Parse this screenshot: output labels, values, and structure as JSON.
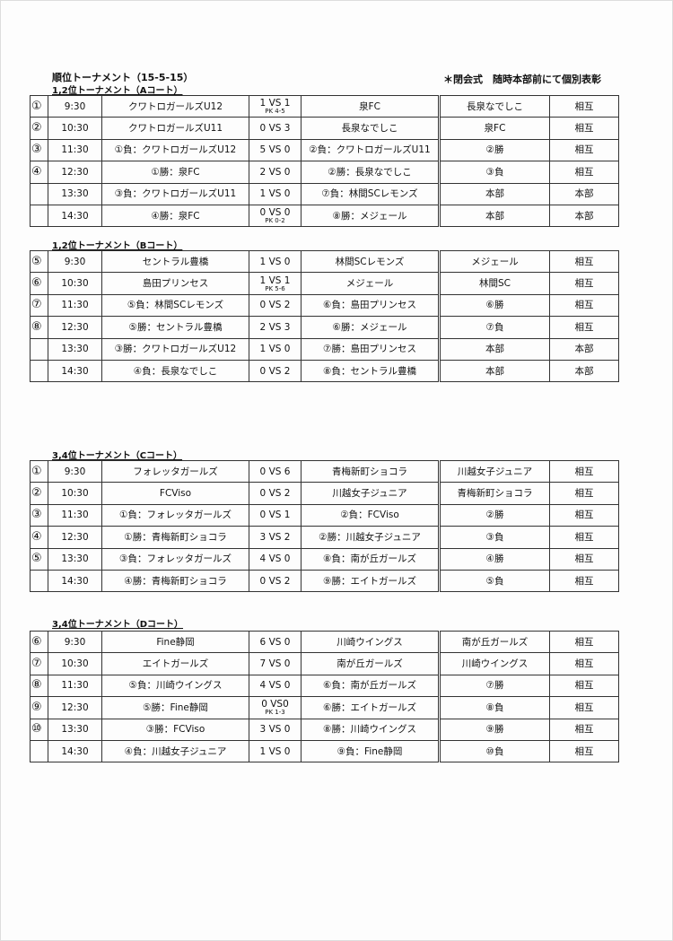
{
  "header": {
    "title": "順位トーナメント（15-5-15）",
    "note": "＊閉会式　随時本部前にて個別表彰"
  },
  "sections": [
    {
      "label": "1,2位トーナメント（Aコート）",
      "rows": [
        {
          "no": "①",
          "time": "9:30",
          "team1": "クワトロガールズU12",
          "score": "1 VS 1",
          "pk": "PK 4-5",
          "team2": "泉FC",
          "referee": "長泉なでしこ",
          "aux": "相互"
        },
        {
          "no": "②",
          "time": "10:30",
          "team1": "クワトロガールズU11",
          "score": "0 VS 3",
          "pk": "",
          "team2": "長泉なでしこ",
          "referee": "泉FC",
          "aux": "相互"
        },
        {
          "no": "③",
          "time": "11:30",
          "team1": "①負：クワトロガールズU12",
          "score": "5 VS 0",
          "pk": "",
          "team2": "②負：クワトロガールズU11",
          "referee": "②勝",
          "aux": "相互"
        },
        {
          "no": "④",
          "time": "12:30",
          "team1": "①勝：泉FC",
          "score": "2 VS 0",
          "pk": "",
          "team2": "②勝：長泉なでしこ",
          "referee": "③負",
          "aux": "相互"
        },
        {
          "no": "",
          "time": "13:30",
          "team1": "③負：クワトロガールズU11",
          "score": "1 VS 0",
          "pk": "",
          "team2": "⑦負：林間SCレモンズ",
          "referee": "本部",
          "aux": "本部"
        },
        {
          "no": "",
          "time": "14:30",
          "team1": "④勝：泉FC",
          "score": "0 VS 0",
          "pk": "PK 0-2",
          "team2": "⑧勝：メジェール",
          "referee": "本部",
          "aux": "本部"
        }
      ]
    },
    {
      "label": "1,2位トーナメント（Bコート）",
      "rows": [
        {
          "no": "⑤",
          "time": "9:30",
          "team1": "セントラル豊橋",
          "score": "1 VS 0",
          "pk": "",
          "team2": "林間SCレモンズ",
          "referee": "メジェール",
          "aux": "相互"
        },
        {
          "no": "⑥",
          "time": "10:30",
          "team1": "島田プリンセス",
          "score": "1 VS 1",
          "pk": "PK 5-6",
          "team2": "メジェール",
          "referee": "林間SC",
          "aux": "相互"
        },
        {
          "no": "⑦",
          "time": "11:30",
          "team1": "⑤負：林間SCレモンズ",
          "score": "0 VS 2",
          "pk": "",
          "team2": "⑥負：島田プリンセス",
          "referee": "⑥勝",
          "aux": "相互"
        },
        {
          "no": "⑧",
          "time": "12:30",
          "team1": "⑤勝：セントラル豊橋",
          "score": "2 VS 3",
          "pk": "",
          "team2": "⑥勝：メジェール",
          "referee": "⑦負",
          "aux": "相互"
        },
        {
          "no": "",
          "time": "13:30",
          "team1": "③勝：クワトロガールズU12",
          "score": "1 VS 0",
          "pk": "",
          "team2": "⑦勝：島田プリンセス",
          "referee": "本部",
          "aux": "本部"
        },
        {
          "no": "",
          "time": "14:30",
          "team1": "④負：長泉なでしこ",
          "score": "0 VS 2",
          "pk": "",
          "team2": "⑧負：セントラル豊橋",
          "referee": "本部",
          "aux": "本部"
        }
      ]
    },
    {
      "label": "3,4位トーナメント（Cコート）",
      "rows": [
        {
          "no": "①",
          "time": "9:30",
          "team1": "フォレッタガールズ",
          "score": "0 VS 6",
          "pk": "",
          "team2": "青梅新町ショコラ",
          "referee": "川越女子ジュニア",
          "aux": "相互"
        },
        {
          "no": "②",
          "time": "10:30",
          "team1": "FCViso",
          "score": "0 VS 2",
          "pk": "",
          "team2": "川越女子ジュニア",
          "referee": "青梅新町ショコラ",
          "aux": "相互"
        },
        {
          "no": "③",
          "time": "11:30",
          "team1": "①負：フォレッタガールズ",
          "score": "0 VS 1",
          "pk": "",
          "team2": "②負：FCViso",
          "referee": "②勝",
          "aux": "相互"
        },
        {
          "no": "④",
          "time": "12:30",
          "team1": "①勝：青梅新町ショコラ",
          "score": "3 VS 2",
          "pk": "",
          "team2": "②勝：川越女子ジュニア",
          "referee": "③負",
          "aux": "相互"
        },
        {
          "no": "⑤",
          "time": "13:30",
          "team1": "③負：フォレッタガールズ",
          "score": "4 VS 0",
          "pk": "",
          "team2": "⑧負：南が丘ガールズ",
          "referee": "④勝",
          "aux": "相互"
        },
        {
          "no": "",
          "time": "14:30",
          "team1": "④勝：青梅新町ショコラ",
          "score": "0 VS 2",
          "pk": "",
          "team2": "⑨勝：エイトガールズ",
          "referee": "⑤負",
          "aux": "相互"
        }
      ]
    },
    {
      "label": "3,4位トーナメント（Dコート）",
      "rows": [
        {
          "no": "⑥",
          "time": "9:30",
          "team1": "Fine静岡",
          "score": "6 VS 0",
          "pk": "",
          "team2": "川崎ウイングス",
          "referee": "南が丘ガールズ",
          "aux": "相互"
        },
        {
          "no": "⑦",
          "time": "10:30",
          "team1": "エイトガールズ",
          "score": "7 VS 0",
          "pk": "",
          "team2": "南が丘ガールズ",
          "referee": "川崎ウイングス",
          "aux": "相互"
        },
        {
          "no": "⑧",
          "time": "11:30",
          "team1": "⑤負：川崎ウイングス",
          "score": "4 VS 0",
          "pk": "",
          "team2": "⑥負：南が丘ガールズ",
          "referee": "⑦勝",
          "aux": "相互"
        },
        {
          "no": "⑨",
          "time": "12:30",
          "team1": "⑤勝：Fine静岡",
          "score": "0 VS0",
          "pk": "PK 1-3",
          "team2": "⑥勝：エイトガールズ",
          "referee": "⑧負",
          "aux": "相互"
        },
        {
          "no": "⑩",
          "time": "13:30",
          "team1": "③勝：FCViso",
          "score": "3 VS 0",
          "pk": "",
          "team2": "⑧勝：川崎ウイングス",
          "referee": "⑨勝",
          "aux": "相互"
        },
        {
          "no": "",
          "time": "14:30",
          "team1": "④負：川越女子ジュニア",
          "score": "1 VS 0",
          "pk": "",
          "team2": "⑨負：Fine静岡",
          "referee": "⑩負",
          "aux": "相互"
        }
      ]
    }
  ]
}
